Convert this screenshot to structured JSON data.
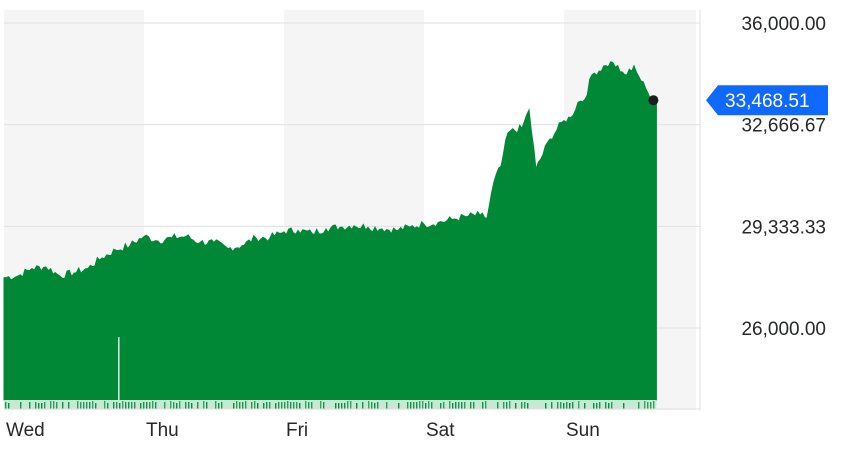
{
  "chart_data": {
    "type": "area",
    "title": "",
    "xlabel": "",
    "ylabel": "",
    "x_ticks": [
      "Wed",
      "Thu",
      "Fri",
      "Sat",
      "Sun"
    ],
    "y_ticks": [
      "36,000.00",
      "32,666.67",
      "29,333.33",
      "26,000.00"
    ],
    "y_tick_values": [
      36000,
      32666.67,
      29333.33,
      26000
    ],
    "ylim": [
      23500,
      36400
    ],
    "xlim": [
      0,
      4.7
    ],
    "current_price": 33468.51,
    "current_price_label": "33,468.51",
    "colors": {
      "area": "#008837",
      "price_badge": "#0f69ff",
      "band_shade": "#f5f5f5",
      "grid": "#e0e0e0",
      "volume": "#c9e8d3"
    },
    "series": [
      {
        "values": [
          [
            0.0,
            27650
          ],
          [
            0.1,
            27700
          ],
          [
            0.2,
            27950
          ],
          [
            0.3,
            28000
          ],
          [
            0.4,
            27700
          ],
          [
            0.5,
            27800
          ],
          [
            0.6,
            27950
          ],
          [
            0.7,
            28300
          ],
          [
            0.8,
            28550
          ],
          [
            0.9,
            28700
          ],
          [
            1.0,
            29000
          ],
          [
            1.1,
            28850
          ],
          [
            1.2,
            28950
          ],
          [
            1.3,
            29000
          ],
          [
            1.4,
            28800
          ],
          [
            1.5,
            28800
          ],
          [
            1.6,
            28600
          ],
          [
            1.7,
            28700
          ],
          [
            1.8,
            28950
          ],
          [
            1.9,
            28950
          ],
          [
            2.0,
            29150
          ],
          [
            2.1,
            29200
          ],
          [
            2.2,
            29100
          ],
          [
            2.3,
            29250
          ],
          [
            2.4,
            29300
          ],
          [
            2.5,
            29350
          ],
          [
            2.6,
            29300
          ],
          [
            2.7,
            29250
          ],
          [
            2.8,
            29200
          ],
          [
            2.9,
            29300
          ],
          [
            3.0,
            29400
          ],
          [
            3.1,
            29450
          ],
          [
            3.2,
            29550
          ],
          [
            3.3,
            29650
          ],
          [
            3.4,
            29700
          ],
          [
            3.45,
            29600
          ],
          [
            3.5,
            30800
          ],
          [
            3.55,
            31300
          ],
          [
            3.6,
            32400
          ],
          [
            3.7,
            32550
          ],
          [
            3.75,
            33150
          ],
          [
            3.8,
            31200
          ],
          [
            3.9,
            32200
          ],
          [
            4.0,
            32800
          ],
          [
            4.05,
            32900
          ],
          [
            4.1,
            33400
          ],
          [
            4.15,
            33500
          ],
          [
            4.2,
            34300
          ],
          [
            4.3,
            34600
          ],
          [
            4.35,
            34700
          ],
          [
            4.4,
            34400
          ],
          [
            4.45,
            34300
          ],
          [
            4.5,
            34600
          ],
          [
            4.55,
            34100
          ],
          [
            4.6,
            33700
          ],
          [
            4.66,
            33469
          ]
        ]
      }
    ],
    "volume_spike": [
      0.82,
      25700
    ],
    "grid": true,
    "legend": "none"
  }
}
